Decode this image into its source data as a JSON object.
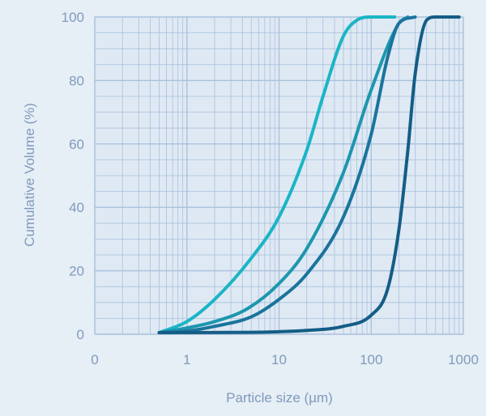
{
  "chart_data": {
    "type": "line",
    "title": "",
    "xlabel": "Particle size (µm)",
    "ylabel": "Cumulative Volume (%)",
    "x_scale": "log",
    "x_axis_range": [
      0.1,
      1000
    ],
    "x_tick_labels": [
      "0",
      "1",
      "10",
      "100",
      "1000"
    ],
    "ylim": [
      0,
      100
    ],
    "y_tick_labels": [
      "0",
      "20",
      "40",
      "60",
      "80",
      "100"
    ],
    "grid": true,
    "legend": "none",
    "colors": {
      "background": "#e6eef6",
      "plot_background": "#dfe9f4",
      "grid": "#a9c1db",
      "axis_text": "#7f9bbb",
      "series": [
        "#1ab5c5",
        "#1c97ae",
        "#1a749c",
        "#145d86"
      ]
    },
    "series": [
      {
        "x": [
          0.5,
          1,
          2,
          5,
          10,
          20,
          30,
          50,
          70,
          100,
          180
        ],
        "values": [
          0.5,
          4,
          11,
          24,
          37,
          58,
          75,
          94,
          99,
          100,
          100
        ]
      },
      {
        "x": [
          0.5,
          1,
          2,
          4.5,
          10,
          20,
          50,
          100,
          200,
          250
        ],
        "values": [
          0.5,
          2,
          4,
          8,
          16,
          27,
          51,
          77,
          98,
          100
        ]
      },
      {
        "x": [
          0.5,
          1,
          2,
          5,
          10,
          20,
          50,
          100,
          150,
          200,
          300
        ],
        "values": [
          0.5,
          1,
          2.5,
          5.5,
          11,
          19,
          37,
          63,
          87,
          98,
          100
        ]
      },
      {
        "x": [
          0.5,
          5,
          10,
          20,
          50,
          100,
          150,
          200,
          250,
          300,
          400,
          500,
          900
        ],
        "values": [
          0.5,
          0.6,
          0.8,
          1.2,
          2.5,
          6,
          14,
          33,
          58,
          82,
          99,
          100,
          100
        ]
      }
    ]
  }
}
